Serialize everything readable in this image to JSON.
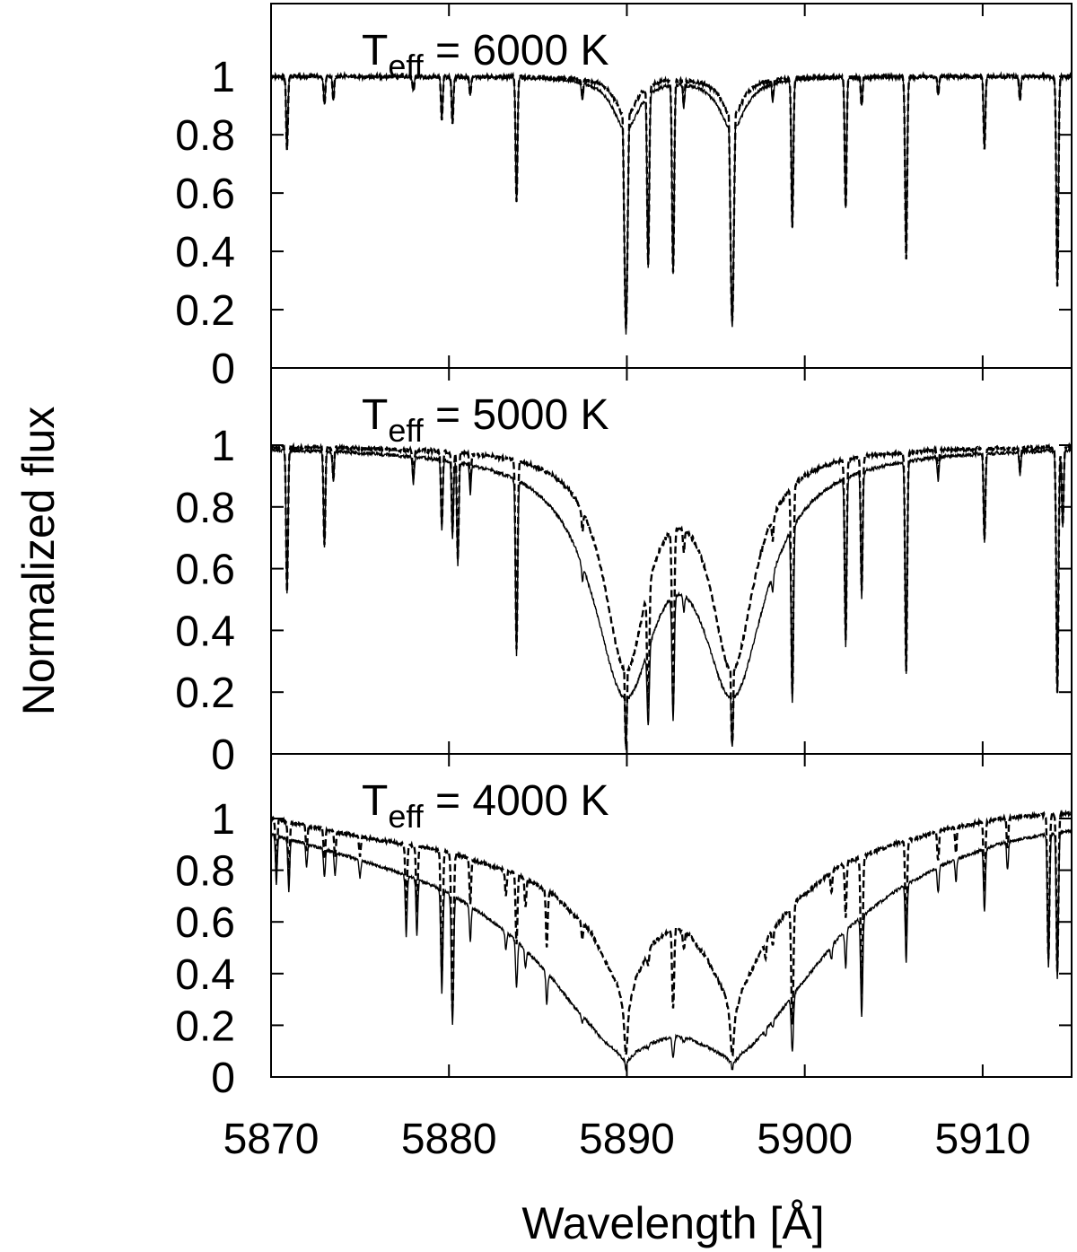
{
  "figure": {
    "ylabel": "Normalized flux",
    "xlabel": "Wavelength [Å]"
  },
  "chart_data": [
    {
      "type": "line",
      "annotation": {
        "prefix": "T",
        "subscript": "eff",
        "suffix": " = 6000 K"
      },
      "xlim": [
        5870,
        5915
      ],
      "ylim": [
        0,
        1.25
      ],
      "yticks": [
        "0",
        "0.2",
        "0.4",
        "0.6",
        "0.8",
        "1"
      ],
      "grid": false,
      "continuum": [
        [
          5870,
          1.0
        ],
        [
          5915,
          1.0
        ]
      ],
      "series": [
        {
          "style": "solid",
          "features": [
            {
              "center": 5889.95,
              "depth": 0.88,
              "sigma": 0.1,
              "wing": 0.18,
              "wing_width": 0.9
            },
            {
              "center": 5895.92,
              "depth": 0.86,
              "sigma": 0.1,
              "wing": 0.18,
              "wing_width": 0.9
            }
          ]
        },
        {
          "style": "dashed",
          "features": [
            {
              "center": 5889.95,
              "depth": 0.86,
              "sigma": 0.1,
              "wing": 0.14,
              "wing_width": 0.7
            },
            {
              "center": 5895.92,
              "depth": 0.84,
              "sigma": 0.1,
              "wing": 0.14,
              "wing_width": 0.7
            }
          ]
        }
      ],
      "lines": [
        [
          5870.9,
          0.25
        ],
        [
          5873.0,
          0.1
        ],
        [
          5873.5,
          0.08
        ],
        [
          5878.0,
          0.05
        ],
        [
          5879.6,
          0.15
        ],
        [
          5880.2,
          0.16
        ],
        [
          5881.2,
          0.06
        ],
        [
          5883.8,
          0.43
        ],
        [
          5887.5,
          0.06
        ],
        [
          5891.2,
          0.63
        ],
        [
          5892.6,
          0.67
        ],
        [
          5893.2,
          0.08
        ],
        [
          5898.2,
          0.06
        ],
        [
          5899.3,
          0.51
        ],
        [
          5902.3,
          0.45
        ],
        [
          5903.2,
          0.1
        ],
        [
          5905.7,
          0.63
        ],
        [
          5907.5,
          0.06
        ],
        [
          5910.1,
          0.25
        ],
        [
          5912.1,
          0.08
        ],
        [
          5914.2,
          0.72
        ]
      ]
    },
    {
      "type": "line",
      "annotation": {
        "prefix": "T",
        "subscript": "eff",
        "suffix": " = 5000 K"
      },
      "xlim": [
        5870,
        5915
      ],
      "ylim": [
        0,
        1.25
      ],
      "yticks": [
        "0",
        "0.2",
        "0.4",
        "0.6",
        "0.8",
        "1"
      ],
      "grid": false,
      "continuum": [
        [
          5870,
          1.0
        ],
        [
          5915,
          1.0
        ]
      ],
      "series": [
        {
          "style": "solid",
          "features": [
            {
              "center": 5889.95,
              "depth": 0.98,
              "sigma": 0.12,
              "wing": 0.8,
              "wing_width": 2.2
            },
            {
              "center": 5895.92,
              "depth": 0.98,
              "sigma": 0.12,
              "wing": 0.8,
              "wing_width": 2.2
            }
          ]
        },
        {
          "style": "dashed",
          "features": [
            {
              "center": 5889.95,
              "depth": 0.97,
              "sigma": 0.12,
              "wing": 0.72,
              "wing_width": 1.5
            },
            {
              "center": 5895.92,
              "depth": 0.97,
              "sigma": 0.12,
              "wing": 0.72,
              "wing_width": 1.5
            }
          ]
        }
      ],
      "lines": [
        [
          5870.9,
          0.47
        ],
        [
          5873.0,
          0.32
        ],
        [
          5873.5,
          0.1
        ],
        [
          5878.0,
          0.09
        ],
        [
          5879.6,
          0.24
        ],
        [
          5880.2,
          0.26
        ],
        [
          5880.5,
          0.35
        ],
        [
          5881.2,
          0.1
        ],
        [
          5883.8,
          0.64
        ],
        [
          5887.5,
          0.08
        ],
        [
          5891.2,
          0.73
        ],
        [
          5892.6,
          0.78
        ],
        [
          5893.2,
          0.1
        ],
        [
          5898.2,
          0.1
        ],
        [
          5899.3,
          0.78
        ],
        [
          5902.3,
          0.61
        ],
        [
          5903.2,
          0.45
        ],
        [
          5905.7,
          0.72
        ],
        [
          5907.5,
          0.08
        ],
        [
          5910.1,
          0.3
        ],
        [
          5912.1,
          0.08
        ],
        [
          5914.2,
          0.8
        ],
        [
          5914.5,
          0.25
        ]
      ]
    },
    {
      "type": "line",
      "annotation": {
        "prefix": "T",
        "subscript": "eff",
        "suffix": " = 4000 K"
      },
      "xlim": [
        5870,
        5915
      ],
      "ylim": [
        0,
        1.25
      ],
      "yticks": [
        "0",
        "0.2",
        "0.4",
        "0.6",
        "0.8",
        "1"
      ],
      "grid": false,
      "xticks": [
        "5870",
        "5880",
        "5890",
        "5900",
        "5910"
      ],
      "continuum": [
        [
          5870,
          1.0
        ],
        [
          5875,
          0.93
        ],
        [
          5880,
          0.87
        ],
        [
          5884,
          0.78
        ],
        [
          5886,
          0.7
        ],
        [
          5888,
          0.56
        ],
        [
          5889.5,
          0.35
        ],
        [
          5889.95,
          0.22
        ],
        [
          5890.5,
          0.38
        ],
        [
          5891.5,
          0.52
        ],
        [
          5892.6,
          0.58
        ],
        [
          5893.5,
          0.55
        ],
        [
          5894.5,
          0.46
        ],
        [
          5895.5,
          0.32
        ],
        [
          5895.92,
          0.2
        ],
        [
          5896.5,
          0.34
        ],
        [
          5898,
          0.55
        ],
        [
          5899.5,
          0.68
        ],
        [
          5902,
          0.82
        ],
        [
          5905,
          0.9
        ],
        [
          5908,
          0.96
        ],
        [
          5911,
          1.0
        ],
        [
          5913,
          1.01
        ],
        [
          5915,
          1.02
        ]
      ],
      "series": [
        {
          "style": "solid",
          "features": [
            {
              "center": 5889.95,
              "depth": 0.82,
              "sigma": 0.1,
              "wing": 0.65,
              "wing_width": 5.0
            },
            {
              "center": 5895.92,
              "depth": 0.82,
              "sigma": 0.1,
              "wing": 0.65,
              "wing_width": 5.0
            }
          ]
        },
        {
          "style": "dashed",
          "features": [
            {
              "center": 5889.95,
              "depth": 0.6,
              "sigma": 0.08,
              "wing": 0.0,
              "wing_width": 1.0
            },
            {
              "center": 5895.92,
              "depth": 0.6,
              "sigma": 0.08,
              "wing": 0.0,
              "wing_width": 1.0
            }
          ]
        }
      ],
      "lines": [
        [
          5870.3,
          0.2
        ],
        [
          5871.0,
          0.22
        ],
        [
          5872.0,
          0.1
        ],
        [
          5873.0,
          0.12
        ],
        [
          5873.6,
          0.1
        ],
        [
          5875.0,
          0.08
        ],
        [
          5877.6,
          0.3
        ],
        [
          5878.2,
          0.28
        ],
        [
          5879.6,
          0.55
        ],
        [
          5880.2,
          0.72
        ],
        [
          5881.2,
          0.2
        ],
        [
          5883.2,
          0.12
        ],
        [
          5883.8,
          0.35
        ],
        [
          5884.3,
          0.15
        ],
        [
          5885.5,
          0.3
        ],
        [
          5887.5,
          0.1
        ],
        [
          5891.2,
          0.1
        ],
        [
          5892.6,
          0.55
        ],
        [
          5893.2,
          0.12
        ],
        [
          5897.8,
          0.12
        ],
        [
          5898.2,
          0.1
        ],
        [
          5899.3,
          0.7
        ],
        [
          5901.5,
          0.1
        ],
        [
          5902.3,
          0.25
        ],
        [
          5903.2,
          0.62
        ],
        [
          5905.7,
          0.4
        ],
        [
          5907.5,
          0.12
        ],
        [
          5908.5,
          0.1
        ],
        [
          5910.1,
          0.28
        ],
        [
          5911.4,
          0.12
        ],
        [
          5913.7,
          0.55
        ],
        [
          5914.2,
          0.6
        ]
      ]
    }
  ]
}
